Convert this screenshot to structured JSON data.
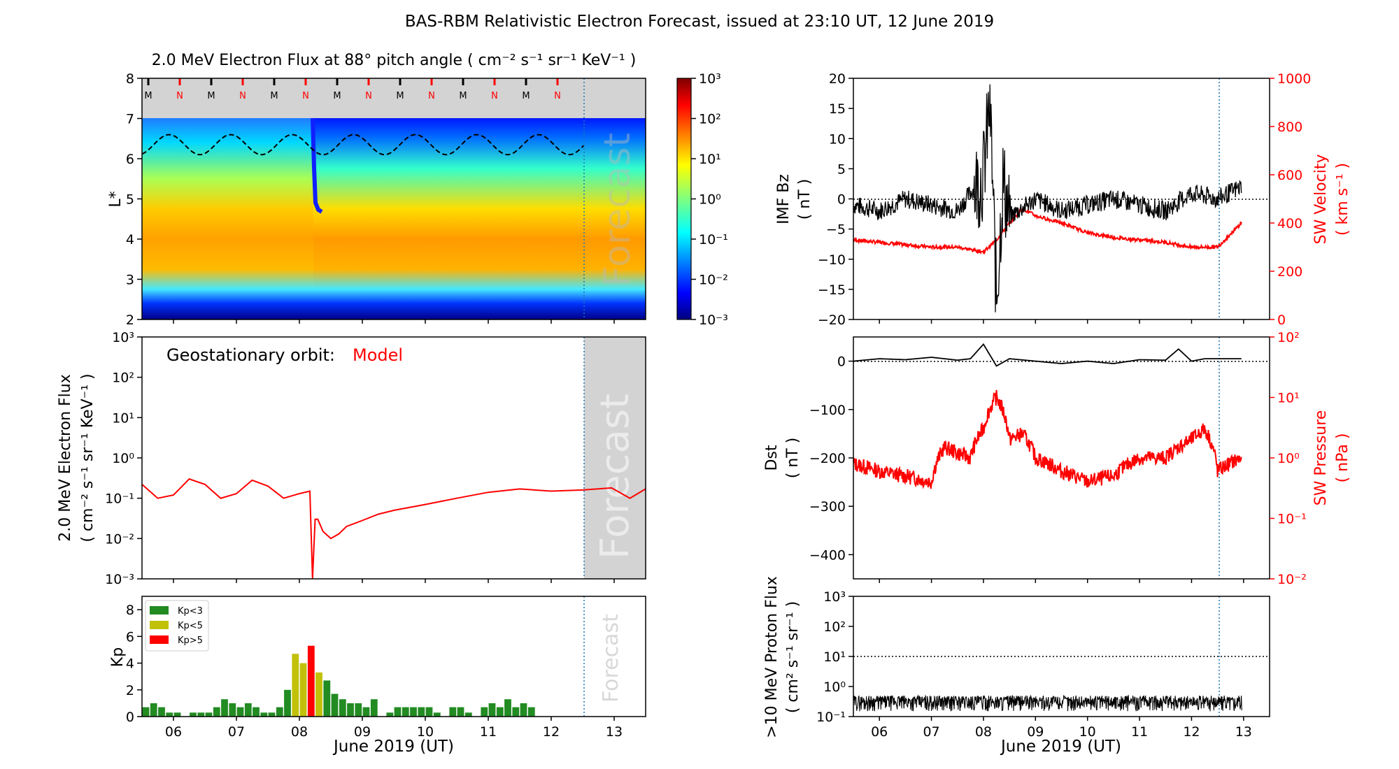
{
  "suptitle": "BAS-RBM Relativistic Electron Forecast, issued at 23:10 UT, 12 June 2019",
  "day_labels": [
    "06",
    "07",
    "08",
    "09",
    "10",
    "11",
    "12",
    "13"
  ],
  "xlabel": "June 2019 (UT)",
  "forecast_label": "Forecast",
  "colors": {
    "flux": "#ff0000",
    "black": "#000000",
    "forecast_line": "#1f77b4",
    "forecast_shade": "#d3d3d3"
  },
  "chart_data": [
    {
      "id": "lstar",
      "type": "heatmap",
      "title": "2.0 MeV Electron Flux at 88° pitch angle ( cm⁻² s⁻¹ sr⁻¹ KeV⁻¹ )",
      "ylabel": "L*",
      "ylim": [
        2,
        8
      ],
      "yticks": [
        "2",
        "3",
        "4",
        "5",
        "6",
        "7",
        "8"
      ],
      "xlim": [
        "2019-06-05T12:00",
        "2019-06-13T12:00"
      ],
      "forecast_start": "2019-06-12T23:10",
      "colorbar": {
        "scale": "log",
        "range": [
          0.001,
          1000
        ],
        "tick_labels": [
          "10⁻³",
          "10⁻²",
          "10⁻¹",
          "10⁰",
          "10¹",
          "10²",
          "10³"
        ]
      },
      "orbit_markers": [
        "M",
        "N",
        "M",
        "N",
        "M",
        "N",
        "M",
        "N",
        "M",
        "N",
        "M",
        "N",
        "M",
        "N"
      ],
      "marker_colors": {
        "M": "#000000",
        "N": "#ff0000"
      }
    },
    {
      "id": "geo",
      "type": "line",
      "annotation": "Geostationary orbit:",
      "annotation_series": "Model",
      "ylabel_lines": [
        "2.0 MeV Electron Flux",
        "( cm⁻² s⁻¹ sr⁻¹ KeV⁻¹ )"
      ],
      "ylim": [
        0.001,
        1000
      ],
      "yscale": "log",
      "ytick_labels": [
        "10⁻³",
        "10⁻²",
        "10⁻¹",
        "10⁰",
        "10¹",
        "10²",
        "10³"
      ],
      "series": [
        {
          "color": "#ff0000",
          "x": [
            "2019-06-05T12:00",
            "2019-06-05T18:00",
            "2019-06-06T00:00",
            "2019-06-06T06:00",
            "2019-06-06T12:00",
            "2019-06-06T18:00",
            "2019-06-07T00:00",
            "2019-06-07T06:00",
            "2019-06-07T12:00",
            "2019-06-07T18:00",
            "2019-06-08T00:00",
            "2019-06-08T04:00",
            "2019-06-08T05:00",
            "2019-06-08T06:00",
            "2019-06-08T07:00",
            "2019-06-08T09:00",
            "2019-06-08T12:00",
            "2019-06-08T15:00",
            "2019-06-08T18:00",
            "2019-06-09T00:00",
            "2019-06-09T06:00",
            "2019-06-09T12:00",
            "2019-06-10T00:00",
            "2019-06-10T12:00",
            "2019-06-11T00:00",
            "2019-06-11T12:00",
            "2019-06-12T00:00",
            "2019-06-12T12:00",
            "2019-06-12T23:00",
            "2019-06-13T06:00",
            "2019-06-13T12:00"
          ],
          "values": [
            0.22,
            0.1,
            0.12,
            0.3,
            0.22,
            0.1,
            0.13,
            0.28,
            0.2,
            0.1,
            0.13,
            0.15,
            0.0008,
            0.03,
            0.03,
            0.015,
            0.01,
            0.013,
            0.02,
            0.028,
            0.04,
            0.05,
            0.07,
            0.1,
            0.14,
            0.17,
            0.15,
            0.16,
            0.18,
            0.1,
            0.17
          ]
        }
      ]
    },
    {
      "id": "kp",
      "type": "bar",
      "ylabel": "Kp",
      "ylim": [
        0,
        9
      ],
      "yticks": [
        "0",
        "2",
        "4",
        "6",
        "8"
      ],
      "legend": [
        {
          "label": "Kp<3",
          "color": "#228b22"
        },
        {
          "label": "Kp<5",
          "color": "#c1c10a"
        },
        {
          "label": "Kp>5",
          "color": "#ff0000"
        }
      ],
      "values": [
        0.7,
        1.0,
        0.7,
        0.3,
        0.3,
        0,
        0.3,
        0.3,
        0.3,
        0.7,
        1.3,
        1.0,
        0.7,
        1.0,
        0.7,
        0.3,
        0.3,
        0.7,
        2.0,
        4.7,
        4.0,
        5.3,
        3.3,
        2.7,
        1.7,
        1.3,
        1.0,
        1.0,
        0.7,
        1.3,
        0,
        0.3,
        0.7,
        0.7,
        0.7,
        0.7,
        0.7,
        0.3,
        0,
        0.7,
        0.7,
        0.3,
        0,
        0.7,
        1.0,
        0.7,
        1.3,
        0.7,
        1.0,
        0.7
      ],
      "start": "2019-06-05T12:00"
    },
    {
      "id": "imf",
      "type": "line",
      "ylabel_lines": [
        "IMF Bz",
        "( nT )"
      ],
      "ylim": [
        -20,
        20
      ],
      "yticks": [
        "−20",
        "−15",
        "−10",
        "−5",
        "0",
        "5",
        "10",
        "15",
        "20"
      ],
      "ylabel2_lines": [
        "SW Velocity",
        "( km s⁻¹ )"
      ],
      "y2lim": [
        0,
        1000
      ],
      "y2ticks": [
        "0",
        "200",
        "400",
        "600",
        "800",
        "1000"
      ],
      "series": [
        {
          "name": "IMF Bz",
          "color": "#000000",
          "x": [
            "2019-06-05T12:00",
            "2019-06-06T00:00",
            "2019-06-06T12:00",
            "2019-06-07T00:00",
            "2019-06-07T12:00",
            "2019-06-07T18:00",
            "2019-06-08T00:00",
            "2019-06-08T03:00",
            "2019-06-08T06:00",
            "2019-06-08T09:00",
            "2019-06-08T12:00",
            "2019-06-09T00:00",
            "2019-06-09T12:00",
            "2019-06-10T00:00",
            "2019-06-10T12:00",
            "2019-06-11T00:00",
            "2019-06-11T12:00",
            "2019-06-12T00:00",
            "2019-06-12T12:00",
            "2019-06-12T23:00"
          ],
          "values": [
            -1,
            -2,
            0,
            -1,
            -2,
            1,
            4,
            16,
            -17,
            3,
            -3,
            0,
            -2,
            -1,
            0,
            -1,
            -2,
            1,
            0,
            2
          ]
        },
        {
          "name": "SW Velocity",
          "color": "#ff0000",
          "x": [
            "2019-06-05T12:00",
            "2019-06-06T00:00",
            "2019-06-06T12:00",
            "2019-06-07T00:00",
            "2019-06-07T12:00",
            "2019-06-07T18:00",
            "2019-06-08T00:00",
            "2019-06-08T06:00",
            "2019-06-08T12:00",
            "2019-06-08T18:00",
            "2019-06-09T00:00",
            "2019-06-09T12:00",
            "2019-06-10T00:00",
            "2019-06-10T12:00",
            "2019-06-11T00:00",
            "2019-06-11T12:00",
            "2019-06-12T00:00",
            "2019-06-12T12:00",
            "2019-06-12T23:00"
          ],
          "values": [
            330,
            320,
            310,
            300,
            300,
            290,
            280,
            330,
            400,
            460,
            430,
            400,
            360,
            340,
            330,
            320,
            300,
            300,
            400
          ]
        }
      ]
    },
    {
      "id": "dst",
      "type": "line",
      "ylabel_lines": [
        "Dst",
        "( nT )"
      ],
      "ylim": [
        -450,
        50
      ],
      "yticks": [
        "−400",
        "−300",
        "−200",
        "−100",
        "0"
      ],
      "ylabel2_lines": [
        "SW Pressure",
        "( nPa )"
      ],
      "y2lim": [
        0.01,
        100
      ],
      "y2scale": "log",
      "y2tick_labels": [
        "10⁻²",
        "10⁻¹",
        "10⁰",
        "10¹",
        "10²"
      ],
      "series": [
        {
          "name": "Dst",
          "color": "#000000",
          "x": [
            "2019-06-05T12:00",
            "2019-06-06T00:00",
            "2019-06-06T12:00",
            "2019-06-07T00:00",
            "2019-06-07T12:00",
            "2019-06-07T18:00",
            "2019-06-08T00:00",
            "2019-06-08T06:00",
            "2019-06-08T12:00",
            "2019-06-09T00:00",
            "2019-06-09T12:00",
            "2019-06-10T00:00",
            "2019-06-10T12:00",
            "2019-06-11T00:00",
            "2019-06-11T12:00",
            "2019-06-11T18:00",
            "2019-06-12T00:00",
            "2019-06-12T06:00",
            "2019-06-12T23:00"
          ],
          "values": [
            0,
            5,
            3,
            8,
            2,
            5,
            35,
            -10,
            5,
            0,
            -5,
            0,
            -5,
            3,
            2,
            25,
            0,
            5,
            5
          ]
        },
        {
          "name": "SW Pressure",
          "color": "#ff0000",
          "x": [
            "2019-06-05T12:00",
            "2019-06-06T00:00",
            "2019-06-06T12:00",
            "2019-06-07T00:00",
            "2019-06-07T06:00",
            "2019-06-07T12:00",
            "2019-06-07T18:00",
            "2019-06-08T00:00",
            "2019-06-08T06:00",
            "2019-06-08T12:00",
            "2019-06-08T18:00",
            "2019-06-09T00:00",
            "2019-06-09T12:00",
            "2019-06-10T00:00",
            "2019-06-10T12:00",
            "2019-06-11T00:00",
            "2019-06-11T12:00",
            "2019-06-12T00:00",
            "2019-06-12T06:00",
            "2019-06-12T12:00",
            "2019-06-12T23:00"
          ],
          "values": [
            0.8,
            0.6,
            0.5,
            0.4,
            1.5,
            1.2,
            1.0,
            3.0,
            10,
            2.0,
            2.5,
            1.0,
            0.6,
            0.4,
            0.5,
            1.0,
            1.0,
            2.0,
            3.0,
            0.6,
            1.0
          ]
        }
      ]
    },
    {
      "id": "proton",
      "type": "line",
      "ylabel_lines": [
        ">10 MeV Proton Flux",
        "( cm² s⁻¹ sr⁻¹ )"
      ],
      "ylim": [
        0.1,
        1000
      ],
      "yscale": "log",
      "ytick_labels": [
        "10⁻¹",
        "10⁰",
        "10¹",
        "10²",
        "10³"
      ],
      "threshold": 10,
      "series": [
        {
          "name": ">10 MeV Proton Flux",
          "color": "#000000",
          "level": 0.25,
          "range": [
            0.15,
            0.5
          ]
        }
      ]
    }
  ]
}
